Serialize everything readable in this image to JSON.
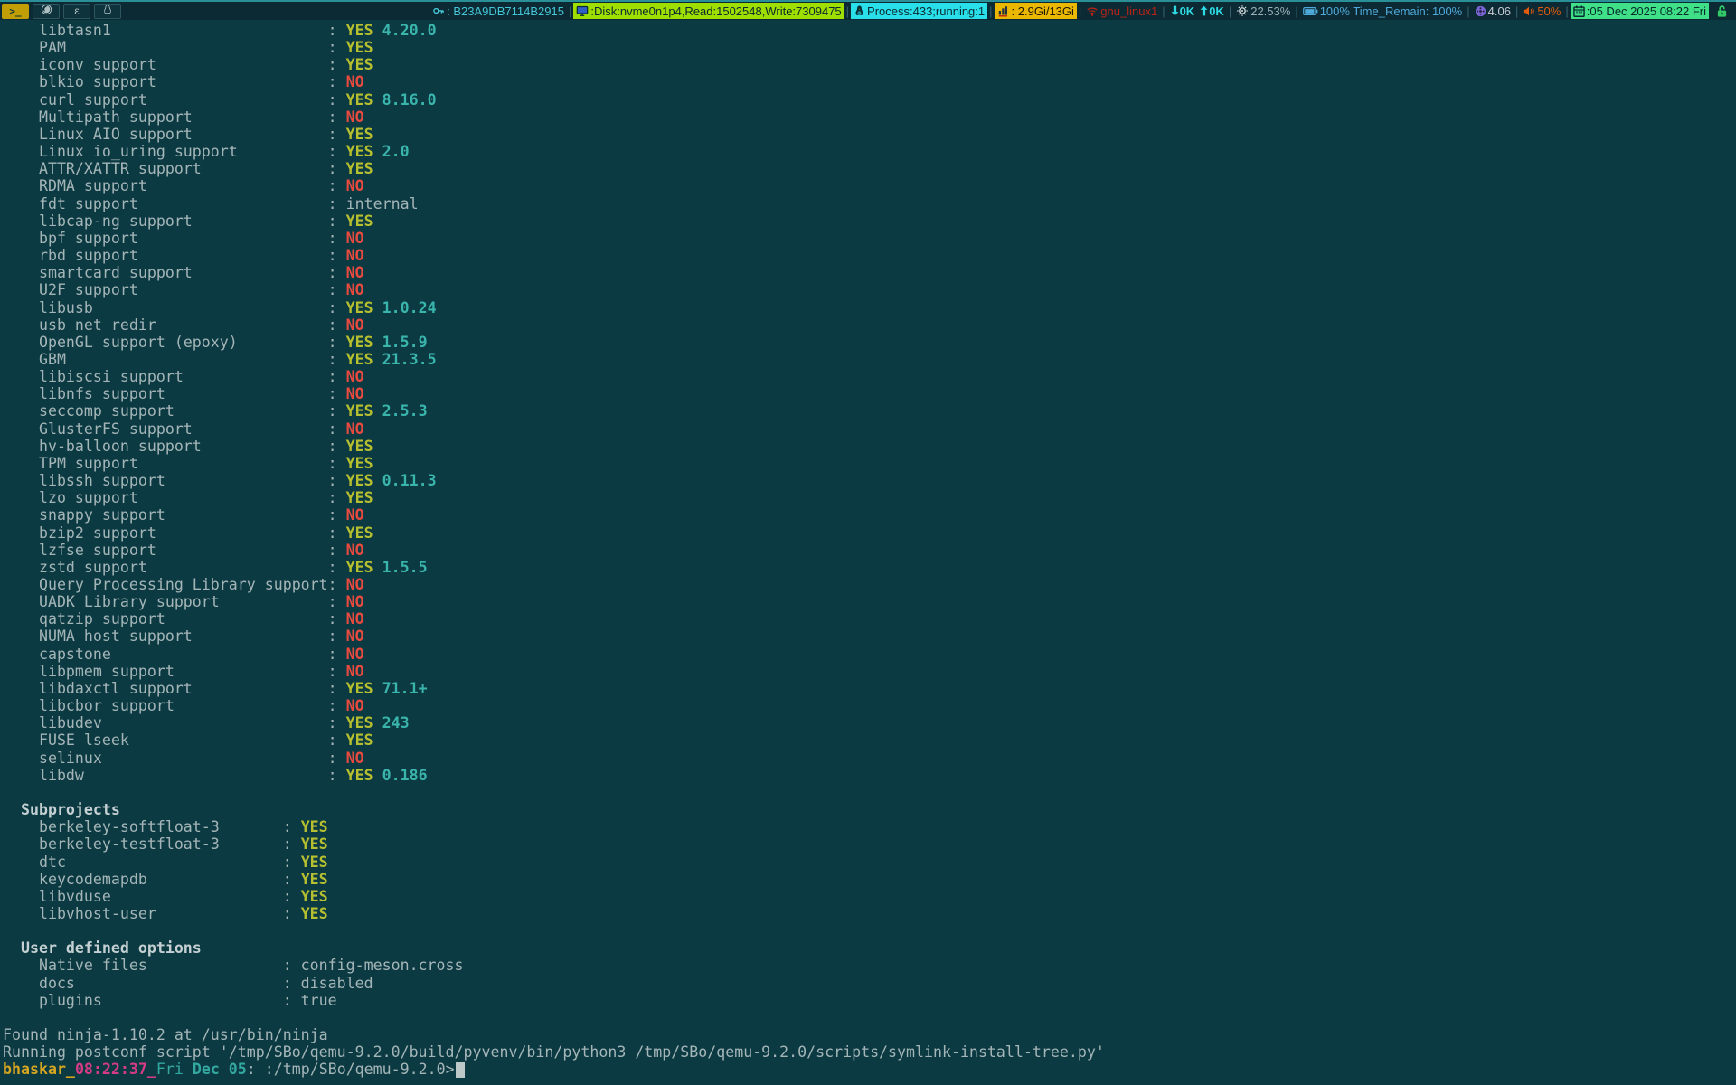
{
  "topbar": {
    "separator": "|",
    "apps": [
      {
        "name": "terminal",
        "label": ">_"
      },
      {
        "name": "firefox"
      },
      {
        "name": "editor",
        "label": "ε"
      },
      {
        "name": "linux"
      }
    ],
    "key": {
      "text": ": B23A9DB7114B2915"
    },
    "disk": {
      "text": ":Disk:nvme0n1p4,Read:1502548,Write:7309475"
    },
    "process": {
      "text": "Process:433;running:1"
    },
    "memory": {
      "text": " : 2.9Gi/13Gi"
    },
    "network": {
      "text": "gnu_linux1"
    },
    "net_down": "0K",
    "net_up": "0K",
    "cpu": "22.53%",
    "battery": "100% Time_Remain: 100%",
    "load": "4.06",
    "volume": "50%",
    "clock": ":05 Dec 2025 08:22 Fri"
  },
  "colors": {
    "yes": "#b6bf2f",
    "no": "#e74a3e",
    "version": "#3ab5ac",
    "background": "#0c3a43",
    "disk_bg": "#9fdf00",
    "process_bg": "#29dfe9",
    "memory_bg": "#eab800",
    "clock_bg": "#3fe087",
    "prompt_user": "#d6a620",
    "prompt_time": "#d63b85"
  },
  "terminal": {
    "features": [
      {
        "label": "libtasn1",
        "status": "YES",
        "version": "4.20.0"
      },
      {
        "label": "PAM",
        "status": "YES",
        "version": ""
      },
      {
        "label": "iconv support",
        "status": "YES",
        "version": ""
      },
      {
        "label": "blkio support",
        "status": "NO",
        "version": ""
      },
      {
        "label": "curl support",
        "status": "YES",
        "version": "8.16.0"
      },
      {
        "label": "Multipath support",
        "status": "NO",
        "version": ""
      },
      {
        "label": "Linux AIO support",
        "status": "YES",
        "version": ""
      },
      {
        "label": "Linux io_uring support",
        "status": "YES",
        "version": "2.0"
      },
      {
        "label": "ATTR/XATTR support",
        "status": "YES",
        "version": ""
      },
      {
        "label": "RDMA support",
        "status": "NO",
        "version": ""
      },
      {
        "label": "fdt support",
        "status": "internal",
        "version": ""
      },
      {
        "label": "libcap-ng support",
        "status": "YES",
        "version": ""
      },
      {
        "label": "bpf support",
        "status": "NO",
        "version": ""
      },
      {
        "label": "rbd support",
        "status": "NO",
        "version": ""
      },
      {
        "label": "smartcard support",
        "status": "NO",
        "version": ""
      },
      {
        "label": "U2F support",
        "status": "NO",
        "version": ""
      },
      {
        "label": "libusb",
        "status": "YES",
        "version": "1.0.24"
      },
      {
        "label": "usb net redir",
        "status": "NO",
        "version": ""
      },
      {
        "label": "OpenGL support (epoxy)",
        "status": "YES",
        "version": "1.5.9"
      },
      {
        "label": "GBM",
        "status": "YES",
        "version": "21.3.5"
      },
      {
        "label": "libiscsi support",
        "status": "NO",
        "version": ""
      },
      {
        "label": "libnfs support",
        "status": "NO",
        "version": ""
      },
      {
        "label": "seccomp support",
        "status": "YES",
        "version": "2.5.3"
      },
      {
        "label": "GlusterFS support",
        "status": "NO",
        "version": ""
      },
      {
        "label": "hv-balloon support",
        "status": "YES",
        "version": ""
      },
      {
        "label": "TPM support",
        "status": "YES",
        "version": ""
      },
      {
        "label": "libssh support",
        "status": "YES",
        "version": "0.11.3"
      },
      {
        "label": "lzo support",
        "status": "YES",
        "version": ""
      },
      {
        "label": "snappy support",
        "status": "NO",
        "version": ""
      },
      {
        "label": "bzip2 support",
        "status": "YES",
        "version": ""
      },
      {
        "label": "lzfse support",
        "status": "NO",
        "version": ""
      },
      {
        "label": "zstd support",
        "status": "YES",
        "version": "1.5.5"
      },
      {
        "label": "Query Processing Library support",
        "status": "NO",
        "version": ""
      },
      {
        "label": "UADK Library support",
        "status": "NO",
        "version": ""
      },
      {
        "label": "qatzip support",
        "status": "NO",
        "version": ""
      },
      {
        "label": "NUMA host support",
        "status": "NO",
        "version": ""
      },
      {
        "label": "capstone",
        "status": "NO",
        "version": ""
      },
      {
        "label": "libpmem support",
        "status": "NO",
        "version": ""
      },
      {
        "label": "libdaxctl support",
        "status": "YES",
        "version": "71.1+"
      },
      {
        "label": "libcbor support",
        "status": "NO",
        "version": ""
      },
      {
        "label": "libudev",
        "status": "YES",
        "version": "243"
      },
      {
        "label": "FUSE lseek",
        "status": "YES",
        "version": ""
      },
      {
        "label": "selinux",
        "status": "NO",
        "version": ""
      },
      {
        "label": "libdw",
        "status": "YES",
        "version": "0.186"
      }
    ],
    "subprojects": {
      "title": "Subprojects",
      "rows": [
        {
          "label": "berkeley-softfloat-3",
          "status": "YES"
        },
        {
          "label": "berkeley-testfloat-3",
          "status": "YES"
        },
        {
          "label": "dtc",
          "status": "YES"
        },
        {
          "label": "keycodemapdb",
          "status": "YES"
        },
        {
          "label": "libvduse",
          "status": "YES"
        },
        {
          "label": "libvhost-user",
          "status": "YES"
        }
      ]
    },
    "user_options": {
      "title": "User defined options",
      "rows": [
        {
          "label": "Native files",
          "value": "config-meson.cross"
        },
        {
          "label": "docs",
          "value": "disabled"
        },
        {
          "label": "plugins",
          "value": "true"
        }
      ]
    },
    "messages": [
      "Found ninja-1.10.2 at /usr/bin/ninja",
      "Running postconf script '/tmp/SBo/qemu-9.2.0/build/pyvenv/bin/python3 /tmp/SBo/qemu-9.2.0/scripts/symlink-install-tree.py'"
    ],
    "prompt_parts": [
      {
        "text": "bhaskar_",
        "style": "gold"
      },
      {
        "text": "08:22:37",
        "style": "pink"
      },
      {
        "text": "_",
        "style": "pink"
      },
      {
        "text": "Fri ",
        "style": "teal"
      },
      {
        "text": "Dec 05",
        "style": "teal-bold"
      },
      {
        "text": ": :/tmp/SBo/qemu-9.2.0>",
        "style": "plain"
      }
    ]
  }
}
